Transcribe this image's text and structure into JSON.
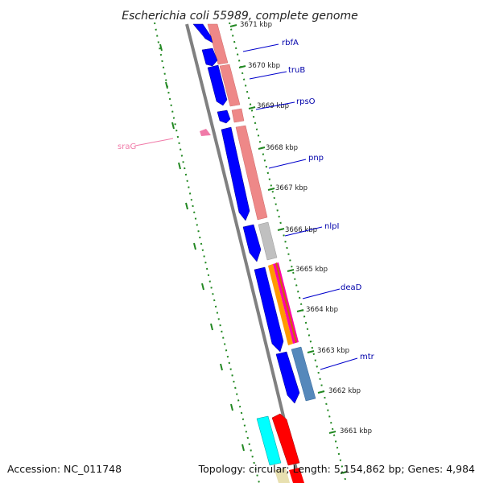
{
  "title": "Escherichia coli 55989, complete genome",
  "accession": "Accession: NC_011748",
  "summary": "Topology: circular; Length: 5,154,862 bp; Genes: 4,984",
  "colors": {
    "cds_blue": "#0000ff",
    "rna_pink": "#ee8888",
    "gray_feature": "#c0c0c0",
    "magenta_feature": "#ff00aa",
    "orange_feature": "#ff9900",
    "steel_feature": "#5588bb",
    "cyan_feature": "#00ffff",
    "red_feature": "#ff0000",
    "ticks": "#228822",
    "label_line": "#0000cc",
    "srag_pink": "#f07aa8"
  },
  "kbp_labels": [
    "3671 kbp",
    "3670 kbp",
    "3669 kbp",
    "3668 kbp",
    "3667 kbp",
    "3666 kbp",
    "3665 kbp",
    "3664 kbp",
    "3663 kbp",
    "3662 kbp",
    "3661 kbp"
  ],
  "genes": [
    "rbfA",
    "truB",
    "rpsO",
    "pnp",
    "nlpI",
    "deaD",
    "mtr"
  ],
  "srag": "sraG"
}
